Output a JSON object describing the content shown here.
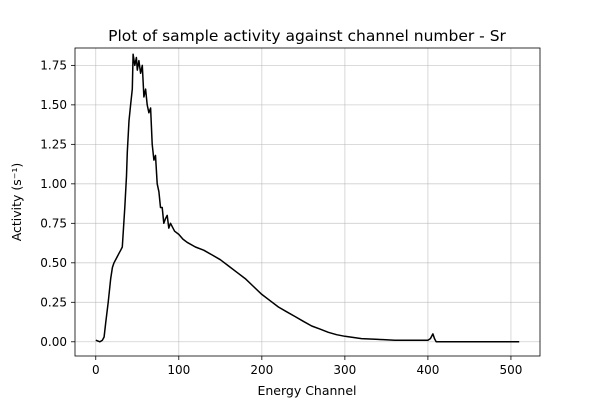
{
  "chart_data": {
    "type": "line",
    "title": "Plot of sample activity against channel number - Sr",
    "xlabel": "Energy Channel",
    "ylabel": "Activity (s⁻¹)",
    "xlim": [
      -25,
      535
    ],
    "ylim": [
      -0.09,
      1.86
    ],
    "x_ticks": [
      0,
      100,
      200,
      300,
      400,
      500
    ],
    "x_tick_labels": [
      "0",
      "100",
      "200",
      "300",
      "400",
      "500"
    ],
    "y_ticks": [
      0,
      0.25,
      0.5,
      0.75,
      1.0,
      1.25,
      1.5,
      1.75
    ],
    "y_tick_labels": [
      "0.00",
      "0.25",
      "0.50",
      "0.75",
      "1.00",
      "1.25",
      "1.50",
      "1.75"
    ],
    "grid": true,
    "legend": "none",
    "series": [
      {
        "color": "#000000",
        "x": [
          0,
          5,
          8,
          10,
          12,
          15,
          18,
          20,
          22,
          25,
          28,
          30,
          32,
          35,
          37,
          38,
          40,
          42,
          44,
          45,
          47,
          49,
          50,
          52,
          54,
          56,
          58,
          60,
          62,
          64,
          66,
          68,
          70,
          72,
          74,
          76,
          78,
          80,
          82,
          84,
          86,
          88,
          90,
          95,
          100,
          105,
          110,
          120,
          130,
          140,
          150,
          160,
          170,
          180,
          190,
          200,
          210,
          220,
          230,
          240,
          250,
          260,
          270,
          280,
          290,
          300,
          320,
          340,
          360,
          380,
          400,
          403,
          406,
          408,
          410,
          420,
          450,
          480,
          510
        ],
        "y": [
          0.01,
          0.0,
          0.01,
          0.03,
          0.12,
          0.25,
          0.4,
          0.47,
          0.5,
          0.53,
          0.56,
          0.58,
          0.6,
          0.85,
          1.05,
          1.2,
          1.4,
          1.5,
          1.6,
          1.82,
          1.75,
          1.8,
          1.72,
          1.78,
          1.7,
          1.75,
          1.55,
          1.6,
          1.5,
          1.45,
          1.48,
          1.25,
          1.15,
          1.18,
          1.0,
          0.95,
          0.85,
          0.85,
          0.75,
          0.78,
          0.8,
          0.72,
          0.75,
          0.7,
          0.68,
          0.65,
          0.63,
          0.6,
          0.58,
          0.55,
          0.52,
          0.48,
          0.44,
          0.4,
          0.35,
          0.3,
          0.26,
          0.22,
          0.19,
          0.16,
          0.13,
          0.1,
          0.08,
          0.06,
          0.045,
          0.035,
          0.02,
          0.015,
          0.01,
          0.01,
          0.01,
          0.02,
          0.05,
          0.02,
          0.0,
          0.0,
          0.0,
          0.0,
          0.0
        ]
      }
    ]
  }
}
